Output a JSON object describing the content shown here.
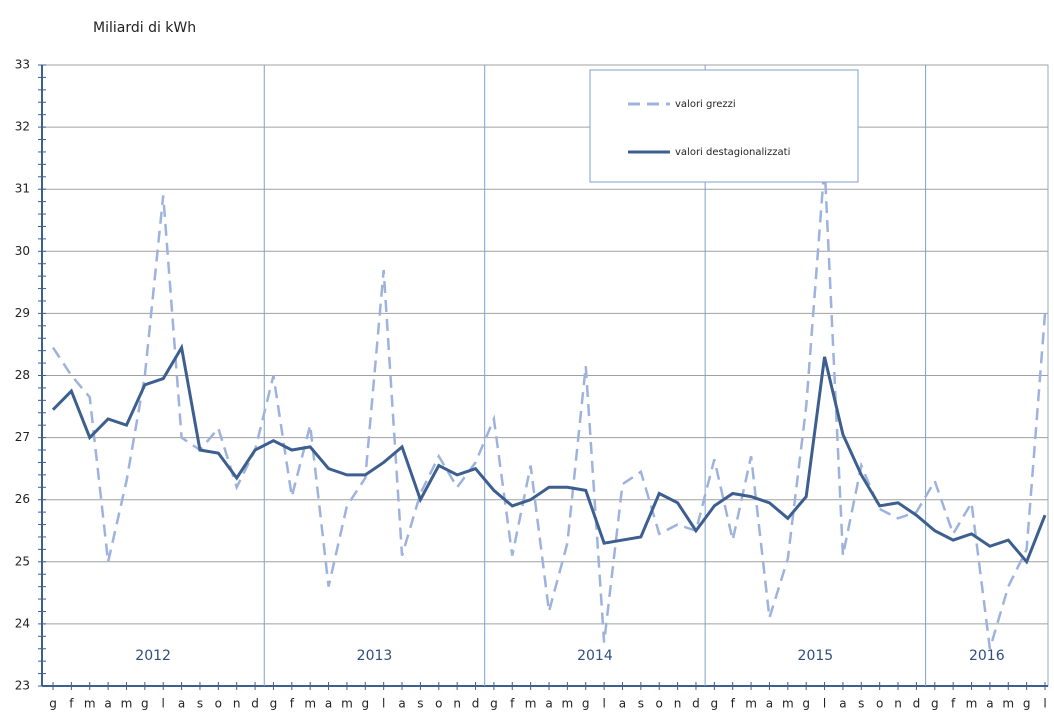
{
  "chart_data": {
    "type": "line",
    "title": "Miliardi di kWh",
    "categories": [
      "g",
      "f",
      "m",
      "a",
      "m",
      "g",
      "l",
      "a",
      "s",
      "o",
      "n",
      "d",
      "g",
      "f",
      "m",
      "a",
      "m",
      "g",
      "l",
      "a",
      "s",
      "o",
      "n",
      "d",
      "g",
      "f",
      "m",
      "a",
      "m",
      "g",
      "l",
      "a",
      "s",
      "o",
      "n",
      "d",
      "g",
      "f",
      "m",
      "a",
      "m",
      "g",
      "l",
      "a",
      "s",
      "o",
      "n",
      "d",
      "g",
      "f",
      "m",
      "a",
      "m",
      "g",
      "l"
    ],
    "year_labels": [
      "2012",
      "2013",
      "2014",
      "2015",
      "2016"
    ],
    "series": [
      {
        "name": "valori grezzi",
        "color": "#9db3dd",
        "dashed": true,
        "values": [
          28.45,
          28.0,
          27.65,
          25.0,
          26.3,
          28.0,
          30.9,
          27.0,
          26.8,
          27.15,
          26.2,
          26.8,
          28.0,
          26.05,
          27.2,
          24.6,
          25.9,
          26.35,
          29.7,
          25.1,
          26.1,
          26.7,
          26.2,
          26.6,
          27.3,
          25.1,
          26.55,
          24.2,
          25.3,
          28.15,
          23.7,
          26.25,
          26.45,
          25.45,
          25.6,
          25.5,
          26.65,
          25.35,
          26.7,
          24.1,
          25.05,
          27.5,
          31.4,
          25.1,
          26.55,
          25.85,
          25.7,
          25.8,
          26.3,
          25.45,
          25.95,
          23.6,
          24.6,
          25.2,
          29.0
        ]
      },
      {
        "name": "valori destagionalizzati",
        "color": "#3d5f8f",
        "dashed": false,
        "values": [
          27.45,
          27.75,
          27.0,
          27.3,
          27.2,
          27.85,
          27.95,
          28.45,
          26.8,
          26.75,
          26.35,
          26.8,
          26.95,
          26.8,
          26.85,
          26.5,
          26.4,
          26.4,
          26.6,
          26.85,
          26.0,
          26.55,
          26.4,
          26.5,
          26.15,
          25.9,
          26.0,
          26.2,
          26.2,
          26.15,
          25.3,
          25.35,
          25.4,
          26.1,
          25.95,
          25.5,
          25.9,
          26.1,
          26.05,
          25.95,
          25.7,
          26.05,
          28.3,
          27.05,
          26.4,
          25.9,
          25.95,
          25.75,
          25.5,
          25.35,
          25.45,
          25.25,
          25.35,
          25.0,
          25.75
        ]
      }
    ],
    "ylim": [
      23,
      33
    ],
    "yticks": [
      23,
      24,
      25,
      26,
      27,
      28,
      29,
      30,
      31,
      32,
      33
    ],
    "grid": true
  }
}
